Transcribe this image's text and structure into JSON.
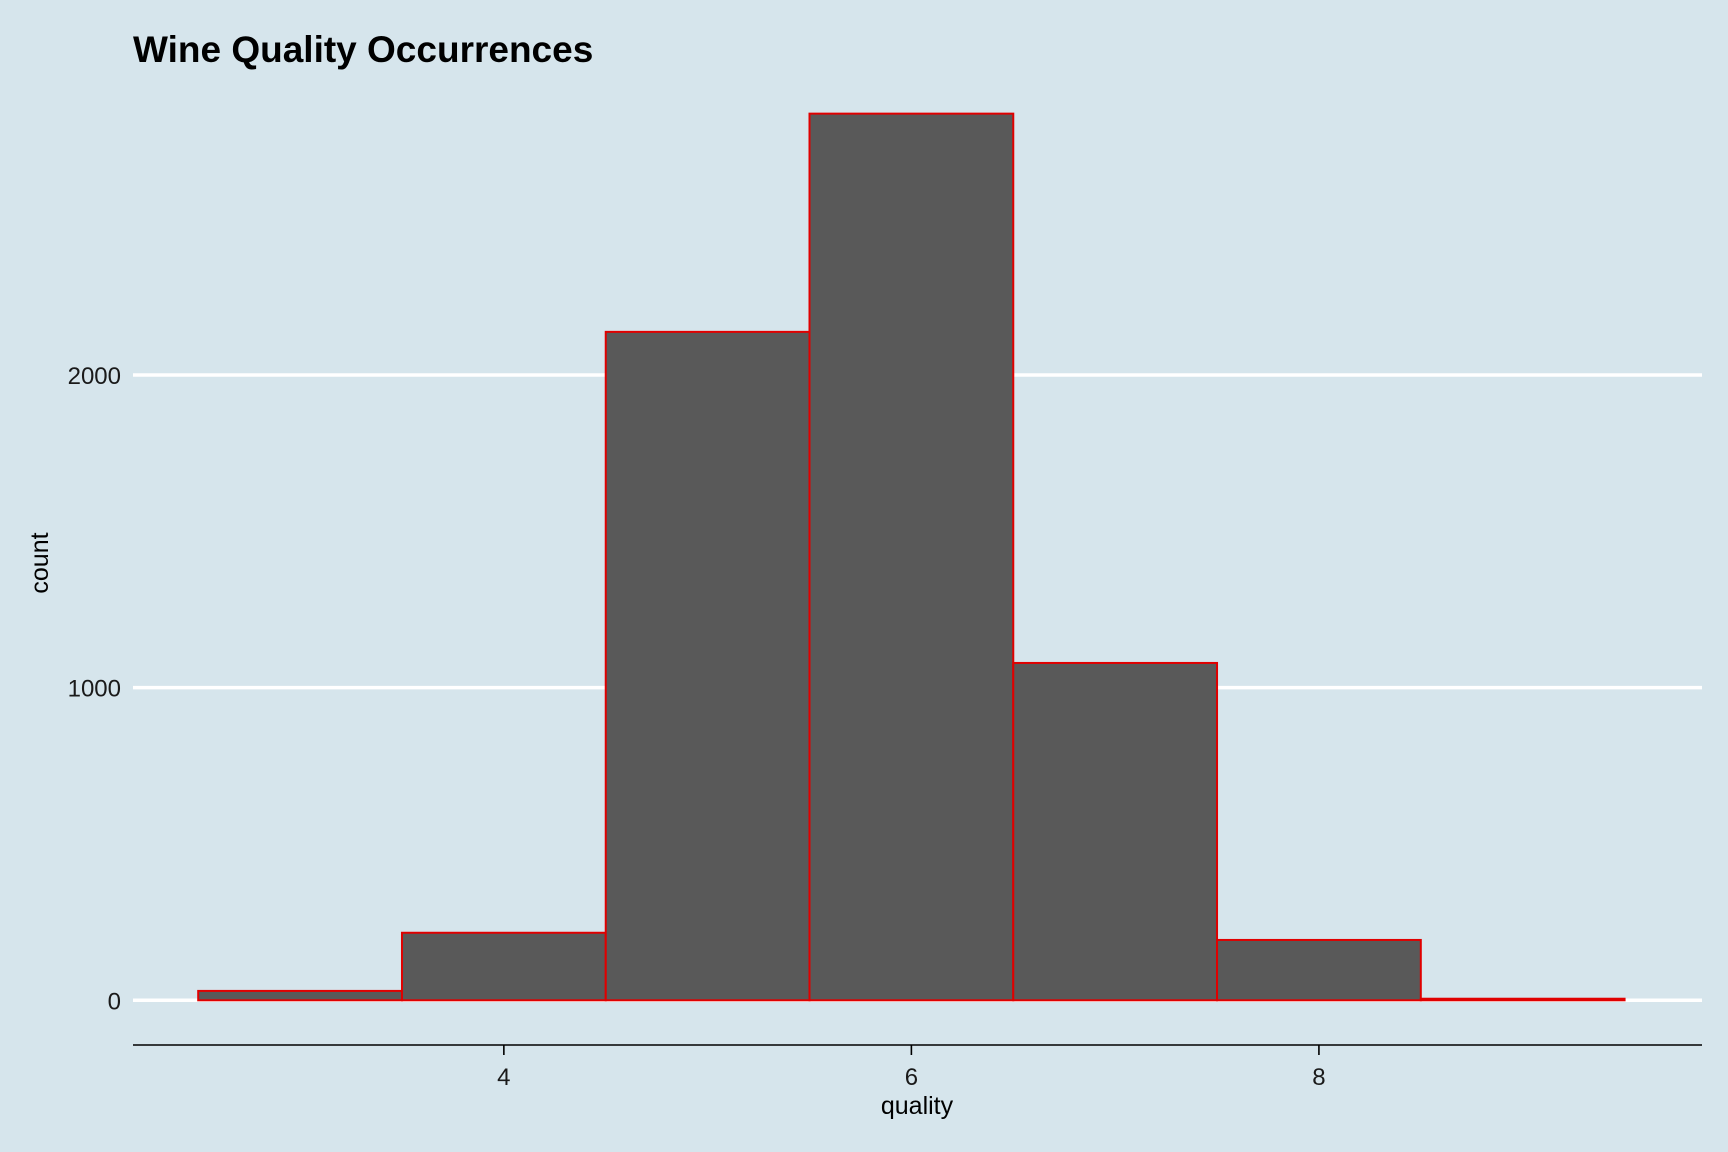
{
  "chart_data": {
    "type": "bar",
    "title": "Wine Quality Occurrences",
    "xlabel": "quality",
    "ylabel": "count",
    "categories": [
      3,
      4,
      5,
      6,
      7,
      8,
      9
    ],
    "values": [
      30,
      216,
      2138,
      2836,
      1079,
      193,
      5
    ],
    "bin_width": 1,
    "xlim": [
      2.18,
      9.88
    ],
    "ylim": [
      -143,
      2950
    ],
    "x_ticks": [
      4,
      6,
      8
    ],
    "y_ticks": [
      0,
      1000,
      2000
    ],
    "grid": "horizontal-major",
    "legend": "none",
    "colors": {
      "background": "#d6e5ec",
      "bar_fill": "#595959",
      "bar_outline": "#e00000",
      "gridline": "#ffffff",
      "axis_line": "#000000"
    }
  }
}
